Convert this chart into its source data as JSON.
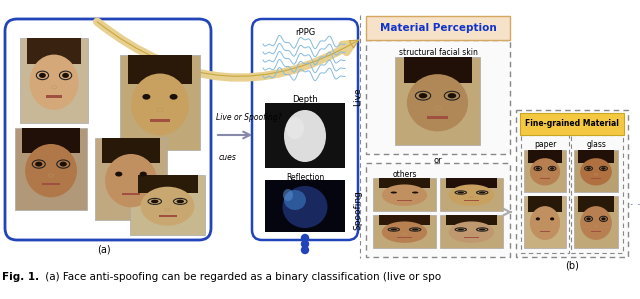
{
  "bg_color": "#ffffff",
  "caption_bold": "Fig. 1.",
  "caption_normal": " (a) Face anti-spoofing can be regarded as a binary classification (live or spo",
  "left_label": "(a)",
  "right_label": "(b)",
  "material_perception_label": "Material Perception",
  "material_perception_bg": "#f5e6cc",
  "material_perception_ec": "#e8c898",
  "live_label": "Live",
  "spoofing_label": "Spoofing",
  "structural_label": "structural facial skin",
  "others_label": "others",
  "fine_grained_label": "Fine-grained Material",
  "fine_grained_bg": "#f5c842",
  "paper_label": "paper",
  "glass_label": "glass",
  "or_label": "or",
  "rppg_label": "rPPG",
  "depth_label": "Depth",
  "reflection_label": "Reflection",
  "arrow_text": "Live or Spoofing?",
  "cues_text": "cues",
  "face_bg1": "#c8b090",
  "face_bg2": "#b89878",
  "face_bg3": "#a88060",
  "face_bg4": "#d0b898",
  "face_bg5": "#c0a080"
}
